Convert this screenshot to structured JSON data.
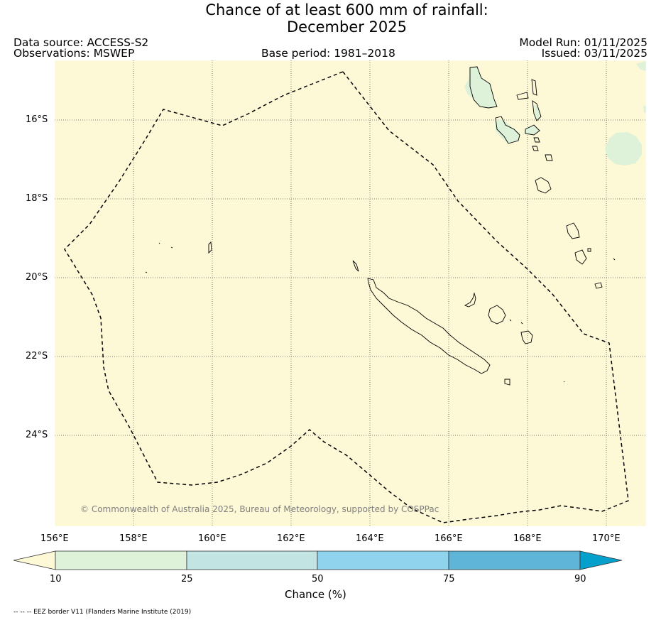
{
  "title": {
    "line1": "Chance of at least 600 mm of rainfall:",
    "line2": "December 2025"
  },
  "header": {
    "data_source": "Data source: ACCESS-S2",
    "observations": "Observations: MSWEP",
    "base_period": "Base period: 1981–2018",
    "model_run": "Model Run: 01/11/2025",
    "issued": "Issued: 03/11/2025"
  },
  "map": {
    "lat_labels": [
      "16°S",
      "18°S",
      "20°S",
      "22°S",
      "24°S"
    ],
    "lon_labels": [
      "156°E",
      "158°E",
      "160°E",
      "162°E",
      "164°E",
      "166°E",
      "168°E",
      "170°E"
    ],
    "copyright": "© Commonwealth of Australia 2025, Bureau of Meteorology, supported by COSPPac"
  },
  "colorbar": {
    "ticks": [
      "10",
      "25",
      "50",
      "75",
      "90"
    ],
    "label": "Chance (%)",
    "colors": [
      "#fdf8d6",
      "#def2da",
      "#c2e5e3",
      "#8fd4ec",
      "#5fb5d7",
      "#05a0cc"
    ]
  },
  "footnote": "-- -- -- EEZ border V11 (Flanders Marine Institute (2019)"
}
